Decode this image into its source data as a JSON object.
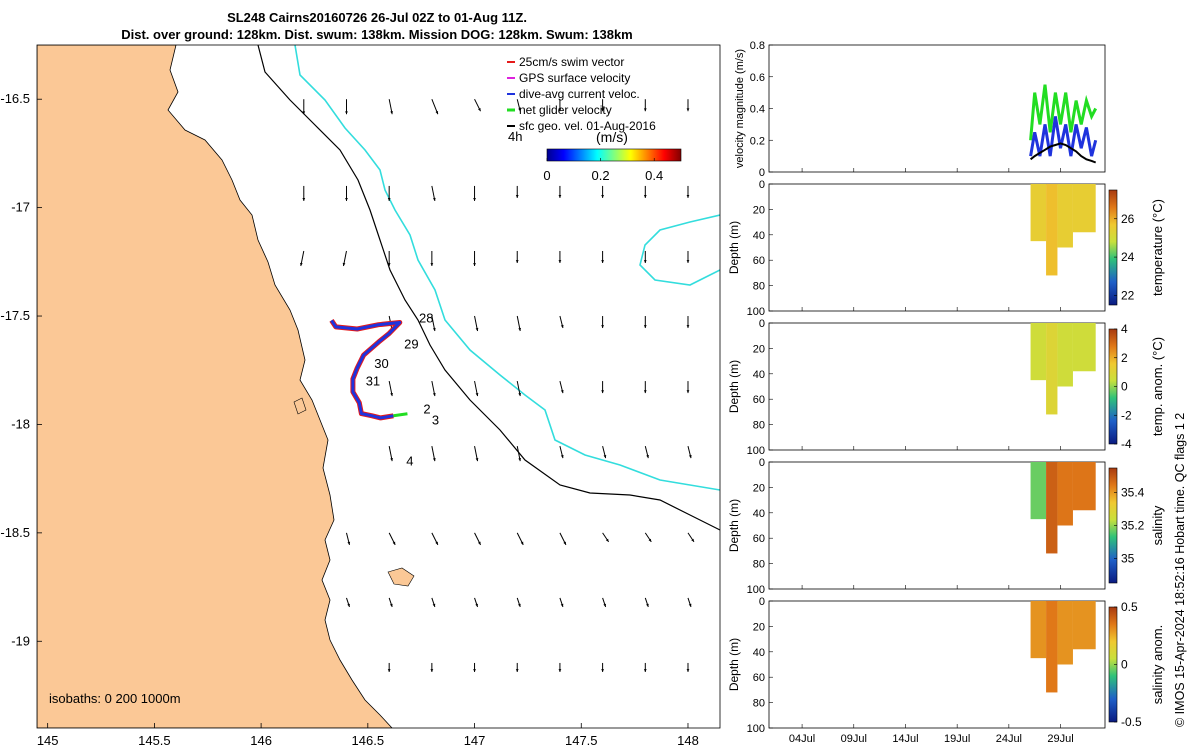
{
  "title": {
    "line1": "SL248 Cairns20160726 26-Jul 02Z to 01-Aug 11Z.",
    "line2": "Dist. over ground: 128km. Dist. swum: 138km. Mission DOG: 128km. Swum: 138km"
  },
  "side_text": "© IMOS 15-Apr-2024 18:52:16 Hobart time. QC flags 1  2",
  "colors": {
    "land": "#fbc896",
    "sea": "#ffffff",
    "isobath_0": "#000000",
    "isobath_200": "#1a1a1a",
    "isobath_1000": "#33dddd",
    "swim": "#e51a1a",
    "gps": "#dd22dd",
    "dac": "#1f33dd",
    "net": "#22dd22",
    "geo": "#000000"
  },
  "chart_data": [
    {
      "type": "map",
      "xlim": [
        144.95,
        148.15
      ],
      "ylim": [
        -19.4,
        -16.25
      ],
      "x_ticks": [
        145,
        145.5,
        146,
        146.5,
        147,
        147.5,
        148
      ],
      "y_ticks": [
        -16.5,
        -17,
        -17.5,
        -18,
        -18.5,
        -19
      ],
      "legend": {
        "placement": "top-right",
        "entries": [
          "25cm/s swim vector",
          "GPS surface velocity",
          "dive-avg current veloc.",
          "net glider velocity",
          "sfc geo. vel. 01-Aug-2016"
        ]
      },
      "colorbar": {
        "label": "(m/s)",
        "ticks": [
          0,
          0.2,
          0.4
        ],
        "range": [
          0,
          0.5
        ]
      },
      "time_label": "4h",
      "isobaths_label": "isobaths: 0   200  1000m",
      "day_labels": [
        {
          "text": "28",
          "lon": 146.74,
          "lat": -17.53
        },
        {
          "text": "29",
          "lon": 146.67,
          "lat": -17.65
        },
        {
          "text": "30",
          "lon": 146.53,
          "lat": -17.74
        },
        {
          "text": "31",
          "lon": 146.49,
          "lat": -17.82
        },
        {
          "text": "2",
          "lon": 146.76,
          "lat": -17.95
        },
        {
          "text": "3",
          "lon": 146.8,
          "lat": -18.0
        },
        {
          "text": "4",
          "lon": 146.68,
          "lat": -18.19
        }
      ],
      "glider_track": [
        {
          "lon": 146.33,
          "lat": -17.52
        },
        {
          "lon": 146.35,
          "lat": -17.55
        },
        {
          "lon": 146.45,
          "lat": -17.56
        },
        {
          "lon": 146.55,
          "lat": -17.54
        },
        {
          "lon": 146.65,
          "lat": -17.53
        },
        {
          "lon": 146.6,
          "lat": -17.58
        },
        {
          "lon": 146.55,
          "lat": -17.62
        },
        {
          "lon": 146.48,
          "lat": -17.68
        },
        {
          "lon": 146.45,
          "lat": -17.74
        },
        {
          "lon": 146.43,
          "lat": -17.79
        },
        {
          "lon": 146.43,
          "lat": -17.85
        },
        {
          "lon": 146.46,
          "lat": -17.9
        },
        {
          "lon": 146.47,
          "lat": -17.95
        },
        {
          "lon": 146.52,
          "lat": -17.96
        },
        {
          "lon": 146.56,
          "lat": -17.97
        },
        {
          "lon": 146.62,
          "lat": -17.96
        }
      ],
      "current_vectors": [
        {
          "lon": 146.2,
          "lat": -16.5,
          "u": 0,
          "v": -0.05
        },
        {
          "lon": 146.4,
          "lat": -16.5,
          "u": 0,
          "v": -0.05
        },
        {
          "lon": 146.6,
          "lat": -16.5,
          "u": 0.01,
          "v": -0.05
        },
        {
          "lon": 146.8,
          "lat": -16.5,
          "u": 0.02,
          "v": -0.05
        },
        {
          "lon": 147,
          "lat": -16.5,
          "u": 0.02,
          "v": -0.04
        },
        {
          "lon": 147.2,
          "lat": -16.5,
          "u": 0.01,
          "v": -0.04
        },
        {
          "lon": 147.4,
          "lat": -16.5,
          "u": 0,
          "v": -0.04
        },
        {
          "lon": 147.6,
          "lat": -16.5,
          "u": 0,
          "v": -0.04
        },
        {
          "lon": 147.8,
          "lat": -16.5,
          "u": 0,
          "v": -0.04
        },
        {
          "lon": 148,
          "lat": -16.5,
          "u": 0,
          "v": -0.04
        },
        {
          "lon": 146.2,
          "lat": -16.9,
          "u": 0,
          "v": -0.05
        },
        {
          "lon": 146.4,
          "lat": -16.9,
          "u": 0,
          "v": -0.05
        },
        {
          "lon": 146.6,
          "lat": -16.9,
          "u": 0,
          "v": -0.05
        },
        {
          "lon": 146.8,
          "lat": -16.9,
          "u": 0.01,
          "v": -0.05
        },
        {
          "lon": 147,
          "lat": -16.9,
          "u": 0,
          "v": -0.05
        },
        {
          "lon": 147.2,
          "lat": -16.9,
          "u": 0,
          "v": -0.04
        },
        {
          "lon": 147.4,
          "lat": -16.9,
          "u": 0,
          "v": -0.04
        },
        {
          "lon": 147.6,
          "lat": -16.9,
          "u": 0,
          "v": -0.04
        },
        {
          "lon": 147.8,
          "lat": -16.9,
          "u": 0,
          "v": -0.04
        },
        {
          "lon": 148,
          "lat": -16.9,
          "u": 0,
          "v": -0.04
        },
        {
          "lon": 146.2,
          "lat": -17.2,
          "u": -0.01,
          "v": -0.05
        },
        {
          "lon": 146.4,
          "lat": -17.2,
          "u": -0.01,
          "v": -0.05
        },
        {
          "lon": 146.6,
          "lat": -17.2,
          "u": 0,
          "v": -0.05
        },
        {
          "lon": 146.8,
          "lat": -17.2,
          "u": 0,
          "v": -0.05
        },
        {
          "lon": 147,
          "lat": -17.2,
          "u": 0,
          "v": -0.05
        },
        {
          "lon": 147.2,
          "lat": -17.2,
          "u": 0,
          "v": -0.04
        },
        {
          "lon": 147.4,
          "lat": -17.2,
          "u": 0,
          "v": -0.04
        },
        {
          "lon": 147.6,
          "lat": -17.2,
          "u": 0,
          "v": -0.04
        },
        {
          "lon": 147.8,
          "lat": -17.2,
          "u": 0,
          "v": -0.04
        },
        {
          "lon": 148,
          "lat": -17.2,
          "u": 0,
          "v": -0.04
        },
        {
          "lon": 146.6,
          "lat": -17.5,
          "u": 0.01,
          "v": -0.05
        },
        {
          "lon": 146.8,
          "lat": -17.5,
          "u": 0.01,
          "v": -0.05
        },
        {
          "lon": 147,
          "lat": -17.5,
          "u": 0.01,
          "v": -0.05
        },
        {
          "lon": 147.2,
          "lat": -17.5,
          "u": 0.01,
          "v": -0.05
        },
        {
          "lon": 147.4,
          "lat": -17.5,
          "u": 0.01,
          "v": -0.04
        },
        {
          "lon": 147.6,
          "lat": -17.5,
          "u": 0,
          "v": -0.04
        },
        {
          "lon": 147.8,
          "lat": -17.5,
          "u": 0,
          "v": -0.04
        },
        {
          "lon": 148,
          "lat": -17.5,
          "u": 0,
          "v": -0.04
        },
        {
          "lon": 146.6,
          "lat": -17.8,
          "u": 0.01,
          "v": -0.05
        },
        {
          "lon": 146.8,
          "lat": -17.8,
          "u": 0.01,
          "v": -0.05
        },
        {
          "lon": 147,
          "lat": -17.8,
          "u": 0.01,
          "v": -0.05
        },
        {
          "lon": 147.2,
          "lat": -17.8,
          "u": 0.01,
          "v": -0.05
        },
        {
          "lon": 147.4,
          "lat": -17.8,
          "u": 0.01,
          "v": -0.04
        },
        {
          "lon": 147.6,
          "lat": -17.8,
          "u": 0,
          "v": -0.04
        },
        {
          "lon": 147.8,
          "lat": -17.8,
          "u": 0,
          "v": -0.04
        },
        {
          "lon": 148,
          "lat": -17.8,
          "u": 0,
          "v": -0.04
        },
        {
          "lon": 146.6,
          "lat": -18.1,
          "u": 0.01,
          "v": -0.05
        },
        {
          "lon": 146.8,
          "lat": -18.1,
          "u": 0.01,
          "v": -0.05
        },
        {
          "lon": 147,
          "lat": -18.1,
          "u": 0.01,
          "v": -0.05
        },
        {
          "lon": 147.2,
          "lat": -18.1,
          "u": 0.01,
          "v": -0.05
        },
        {
          "lon": 147.4,
          "lat": -18.1,
          "u": 0.01,
          "v": -0.04
        },
        {
          "lon": 147.6,
          "lat": -18.1,
          "u": 0.01,
          "v": -0.04
        },
        {
          "lon": 147.8,
          "lat": -18.1,
          "u": 0.01,
          "v": -0.04
        },
        {
          "lon": 148,
          "lat": -18.1,
          "u": 0.01,
          "v": -0.04
        },
        {
          "lon": 146.4,
          "lat": -18.5,
          "u": 0.01,
          "v": -0.04
        },
        {
          "lon": 146.6,
          "lat": -18.5,
          "u": 0.02,
          "v": -0.04
        },
        {
          "lon": 146.8,
          "lat": -18.5,
          "u": 0.02,
          "v": -0.04
        },
        {
          "lon": 147,
          "lat": -18.5,
          "u": 0.02,
          "v": -0.04
        },
        {
          "lon": 147.2,
          "lat": -18.5,
          "u": 0.02,
          "v": -0.04
        },
        {
          "lon": 147.4,
          "lat": -18.5,
          "u": 0.02,
          "v": -0.04
        },
        {
          "lon": 147.6,
          "lat": -18.5,
          "u": 0.02,
          "v": -0.03
        },
        {
          "lon": 147.8,
          "lat": -18.5,
          "u": 0.02,
          "v": -0.03
        },
        {
          "lon": 148,
          "lat": -18.5,
          "u": 0.02,
          "v": -0.03
        },
        {
          "lon": 146.4,
          "lat": -18.8,
          "u": 0.01,
          "v": -0.03
        },
        {
          "lon": 146.6,
          "lat": -18.8,
          "u": 0.01,
          "v": -0.03
        },
        {
          "lon": 146.8,
          "lat": -18.8,
          "u": 0.01,
          "v": -0.03
        },
        {
          "lon": 147,
          "lat": -18.8,
          "u": 0.01,
          "v": -0.03
        },
        {
          "lon": 147.2,
          "lat": -18.8,
          "u": 0.01,
          "v": -0.03
        },
        {
          "lon": 147.4,
          "lat": -18.8,
          "u": 0.01,
          "v": -0.03
        },
        {
          "lon": 147.6,
          "lat": -18.8,
          "u": 0.01,
          "v": -0.03
        },
        {
          "lon": 147.8,
          "lat": -18.8,
          "u": 0.01,
          "v": -0.03
        },
        {
          "lon": 148,
          "lat": -18.8,
          "u": 0.01,
          "v": -0.03
        },
        {
          "lon": 146.6,
          "lat": -19.1,
          "u": 0,
          "v": -0.03
        },
        {
          "lon": 146.8,
          "lat": -19.1,
          "u": 0,
          "v": -0.03
        },
        {
          "lon": 147,
          "lat": -19.1,
          "u": 0,
          "v": -0.03
        },
        {
          "lon": 147.2,
          "lat": -19.1,
          "u": 0,
          "v": -0.03
        },
        {
          "lon": 147.4,
          "lat": -19.1,
          "u": 0,
          "v": -0.03
        },
        {
          "lon": 147.6,
          "lat": -19.1,
          "u": 0,
          "v": -0.03
        },
        {
          "lon": 147.8,
          "lat": -19.1,
          "u": 0,
          "v": -0.03
        },
        {
          "lon": 148,
          "lat": -19.1,
          "u": 0,
          "v": -0.03
        }
      ]
    },
    {
      "type": "line",
      "ylabel": "velocity magnitude (m/s)",
      "ylim": [
        0,
        0.8
      ],
      "y_ticks": [
        0,
        0.2,
        0.4,
        0.6,
        0.8
      ],
      "x_ticks": [
        "04Jul",
        "09Jul",
        "14Jul",
        "19Jul",
        "24Jul",
        "29Jul"
      ],
      "series": [
        {
          "color": "#22dd22",
          "x": [
            26.1,
            26.5,
            27,
            27.5,
            28,
            28.5,
            29,
            29.5,
            30,
            30.5,
            31,
            31.5,
            32,
            32.4
          ],
          "values": [
            0.2,
            0.5,
            0.3,
            0.55,
            0.25,
            0.5,
            0.3,
            0.5,
            0.25,
            0.45,
            0.3,
            0.45,
            0.35,
            0.4
          ]
        },
        {
          "color": "#1f33dd",
          "x": [
            26.1,
            26.5,
            27,
            27.5,
            28,
            28.5,
            29,
            29.5,
            30,
            30.5,
            31,
            31.5,
            32,
            32.4
          ],
          "values": [
            0.1,
            0.25,
            0.1,
            0.3,
            0.1,
            0.35,
            0.15,
            0.3,
            0.1,
            0.3,
            0.15,
            0.28,
            0.1,
            0.2
          ]
        },
        {
          "color": "#000000",
          "x": [
            26.1,
            26.5,
            27,
            27.5,
            28,
            28.5,
            29,
            29.5,
            30,
            30.5,
            31,
            31.5,
            32,
            32.4
          ],
          "values": [
            0.08,
            0.1,
            0.12,
            0.14,
            0.16,
            0.17,
            0.18,
            0.17,
            0.15,
            0.13,
            0.1,
            0.08,
            0.07,
            0.06
          ]
        }
      ]
    },
    {
      "type": "heatmap",
      "variable": "temperature",
      "cbar_label": "temperature (°C)",
      "cbar_ticks": [
        22,
        24,
        26
      ],
      "cbar_range": [
        21.5,
        27.5
      ],
      "ylabel": "Depth (m)",
      "ylim": [
        100,
        0
      ],
      "y_ticks": [
        0,
        20,
        40,
        60,
        80,
        100
      ],
      "profile_depths": [
        {
          "from": 26.1,
          "to": 27.6,
          "depth": 45
        },
        {
          "from": 27.6,
          "to": 28.7,
          "depth": 72
        },
        {
          "from": 28.7,
          "to": 30.2,
          "depth": 50
        },
        {
          "from": 30.2,
          "to": 32.4,
          "depth": 38
        }
      ],
      "mean_color_value": 25.5
    },
    {
      "type": "heatmap",
      "variable": "temp. anom.",
      "cbar_label": "temp. anom. (°C)",
      "cbar_ticks": [
        -4,
        -2,
        0,
        2,
        4
      ],
      "cbar_range": [
        -4,
        4
      ],
      "ylabel": "Depth (m)",
      "ylim": [
        100,
        0
      ],
      "y_ticks": [
        0,
        20,
        40,
        60,
        80,
        100
      ],
      "mean_color_value": 0.6
    },
    {
      "type": "heatmap",
      "variable": "salinity",
      "cbar_label": "salinity",
      "cbar_ticks": [
        35,
        35.2,
        35.4
      ],
      "cbar_range": [
        34.85,
        35.55
      ],
      "ylabel": "Depth (m)",
      "ylim": [
        100,
        0
      ],
      "y_ticks": [
        0,
        20,
        40,
        60,
        80,
        100
      ],
      "mean_color_value": 35.45
    },
    {
      "type": "heatmap",
      "variable": "salinity anom.",
      "cbar_label": "salinity anom.",
      "cbar_ticks": [
        -0.5,
        0,
        0.5
      ],
      "cbar_range": [
        -0.5,
        0.5
      ],
      "ylabel": "Depth (m)",
      "ylim": [
        100,
        0
      ],
      "y_ticks": [
        0,
        20,
        40,
        60,
        80,
        100
      ],
      "mean_color_value": 0.3
    }
  ]
}
